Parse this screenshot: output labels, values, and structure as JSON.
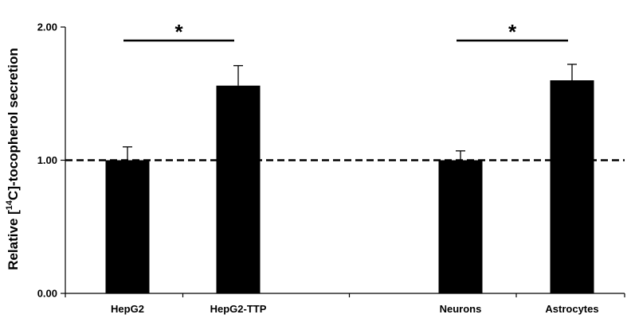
{
  "chart_data": {
    "type": "bar",
    "categories": [
      "HepG2",
      "HepG2-TTP",
      "Neurons",
      "Astrocytes"
    ],
    "values": [
      1.0,
      1.56,
      1.0,
      1.6
    ],
    "errors": [
      0.1,
      0.15,
      0.07,
      0.12
    ],
    "ylabel": {
      "prefix": "Relative [",
      "superscript": "14",
      "suffix": "C]-tocopherol secretion"
    },
    "ylim": [
      0,
      2
    ],
    "yticks": [
      "0.00",
      "1.00",
      "2.00"
    ],
    "reference_line": 1.0,
    "significance": [
      {
        "from": 0,
        "to": 1,
        "label": "*"
      },
      {
        "from": 2,
        "to": 3,
        "label": "*"
      }
    ],
    "bar_color": "#000000",
    "grid": false,
    "legend": "none"
  }
}
